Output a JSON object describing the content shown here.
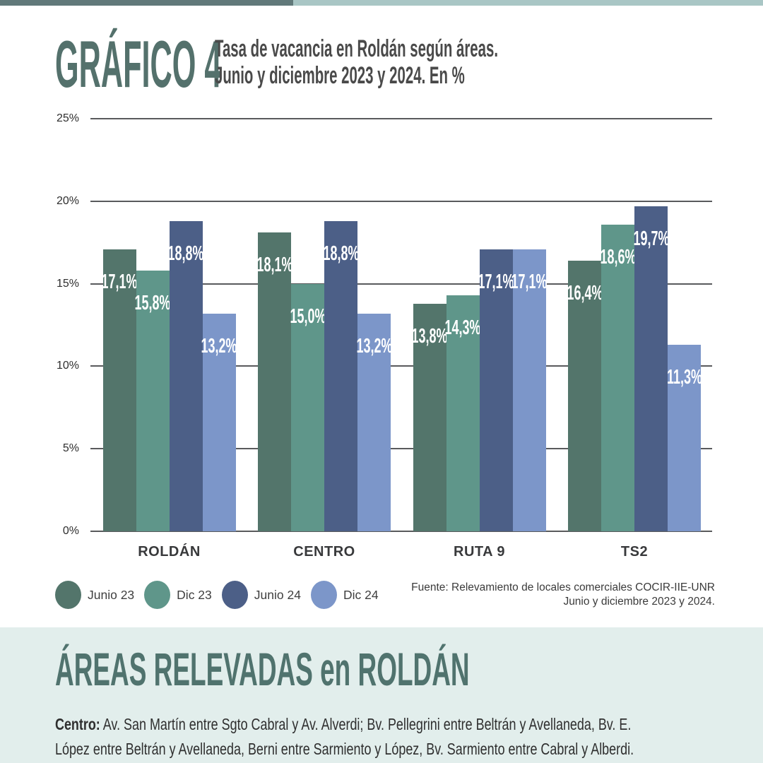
{
  "header": {
    "tag": "GRÁFICO 4",
    "title_line1": "Tasa de vacancia en Roldán según áreas.",
    "title_line2": "Junio y diciembre 2023 y 2024. En %"
  },
  "chart_data": {
    "type": "bar",
    "title": "Tasa de vacancia en Roldán según áreas. Junio y diciembre 2023 y 2024. En %",
    "categories": [
      "ROLDÁN",
      "CENTRO",
      "RUTA 9",
      "TS2"
    ],
    "series": [
      {
        "name": "Junio 23",
        "color": "#53756B",
        "values": [
          17.1,
          18.1,
          13.8,
          16.4
        ],
        "labels": [
          "17,1%",
          "18,1%",
          "13,8%",
          "16,4%"
        ]
      },
      {
        "name": "Dic 23",
        "color": "#5F968A",
        "values": [
          15.8,
          15.0,
          14.3,
          18.6
        ],
        "labels": [
          "15,8%",
          "15,0%",
          "14,3%",
          "18,6%"
        ]
      },
      {
        "name": "Junio 24",
        "color": "#4C5F87",
        "values": [
          18.8,
          18.8,
          17.1,
          19.7
        ],
        "labels": [
          "18,8%",
          "18,8%",
          "17,1%",
          "19,7%"
        ]
      },
      {
        "name": "Dic 24",
        "color": "#7C96C9",
        "values": [
          13.2,
          13.2,
          17.1,
          11.3
        ],
        "labels": [
          "13,2%",
          "13,2%",
          "17,1%",
          "11,3%"
        ]
      }
    ],
    "y_ticks": [
      "25%",
      "20%",
      "15%",
      "10%",
      "5%",
      "0%"
    ],
    "ylim": [
      0,
      25
    ],
    "grid": true,
    "legend_position": "bottom-left"
  },
  "source": {
    "line1": "Fuente: Relevamiento de locales comerciales COCIR-IIE-UNR",
    "line2": "Junio y diciembre 2023 y 2024."
  },
  "footer": {
    "heading": "ÁREAS RELEVADAS en ROLDÁN",
    "bold_label": "Centro:",
    "text_line1": "Av. San Martín entre Sgto Cabral y Av. Alverdi; Bv. Pellegrini entre Beltrán y Avellaneda, Bv. E.",
    "text_line2": "López entre Beltrán y Avellaneda, Berni entre Sarmiento y López, Bv. Sarmiento entre Cabral y Alberdi."
  },
  "colors": {
    "topbar_dark": "#61797A",
    "topbar_light": "#A9C6C5",
    "tag_teal": "#54716C",
    "grid_gray": "#595A5C",
    "footer_bg": "#E2EEEC",
    "footer_heading": "#50736E"
  }
}
